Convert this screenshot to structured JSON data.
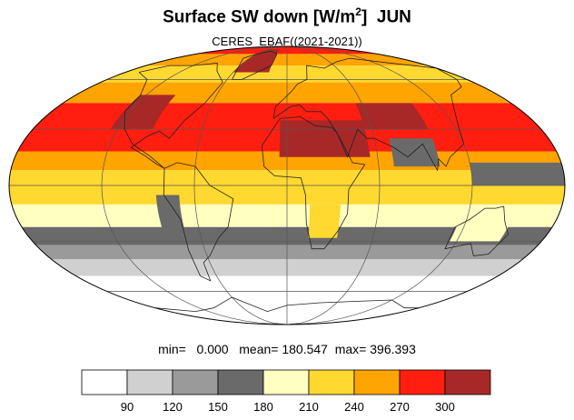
{
  "title": {
    "main": "Surface SW down [W/m",
    "sup": "2",
    "close": "]",
    "month": "JUN"
  },
  "subtitle": "CERES_EBAF((2021-2021))",
  "stats": {
    "min_label": "min=",
    "min": "0.000",
    "mean_label": "mean=",
    "mean": "180.547",
    "max_label": "max=",
    "max": "396.393"
  },
  "colorbar": {
    "levels": [
      90,
      120,
      150,
      180,
      210,
      240,
      270,
      300
    ],
    "colors": [
      "#ffffff",
      "#d0d0d0",
      "#9a9a9a",
      "#6a6a6a",
      "#ffffc0",
      "#ffd830",
      "#ffa400",
      "#ff1e10",
      "#a82828"
    ],
    "tick_labels": [
      "90",
      "120",
      "150",
      "180",
      "210",
      "240",
      "270",
      "300"
    ]
  },
  "map": {
    "projection": "Mollweide",
    "latitude_bands_north_to_south": [
      {
        "lat_from": 90,
        "lat_to": 80,
        "value_bin": 7
      },
      {
        "lat_from": 80,
        "lat_to": 70,
        "value_bin": 6
      },
      {
        "lat_from": 70,
        "lat_to": 58,
        "value_bin": 5
      },
      {
        "lat_from": 58,
        "lat_to": 45,
        "value_bin": 6
      },
      {
        "lat_from": 45,
        "lat_to": 30,
        "value_bin": 7
      },
      {
        "lat_from": 30,
        "lat_to": 18,
        "value_bin": 7
      },
      {
        "lat_from": 18,
        "lat_to": 8,
        "value_bin": 6
      },
      {
        "lat_from": 8,
        "lat_to": 0,
        "value_bin": 5
      },
      {
        "lat_from": 0,
        "lat_to": -10,
        "value_bin": 5
      },
      {
        "lat_from": -10,
        "lat_to": -22,
        "value_bin": 4
      },
      {
        "lat_from": -22,
        "lat_to": -32,
        "value_bin": 3
      },
      {
        "lat_from": -32,
        "lat_to": -40,
        "value_bin": 2
      },
      {
        "lat_from": -40,
        "lat_to": -50,
        "value_bin": 1
      },
      {
        "lat_from": -50,
        "lat_to": -90,
        "value_bin": 0
      }
    ],
    "hotspots": [
      {
        "name": "sahara-arabia",
        "lon_from": -5,
        "lon_to": 55,
        "lat_from": 15,
        "lat_to": 35,
        "value_bin": 8
      },
      {
        "name": "arctic-greenland",
        "lon_from": -60,
        "lon_to": -20,
        "lat_from": 65,
        "lat_to": 85,
        "value_bin": 8
      },
      {
        "name": "north-america-west",
        "lon_from": -125,
        "lon_to": -95,
        "lat_from": 30,
        "lat_to": 50,
        "value_bin": 8
      },
      {
        "name": "central-asia",
        "lon_from": 55,
        "lon_to": 100,
        "lat_from": 30,
        "lat_to": 45,
        "value_bin": 8
      },
      {
        "name": "indian-monsoon",
        "lon_from": 70,
        "lon_to": 100,
        "lat_from": 10,
        "lat_to": 25,
        "value_bin": 3
      },
      {
        "name": "itcz-pacific",
        "lon_from": 120,
        "lon_to": 180,
        "lat_from": 0,
        "lat_to": 12,
        "value_bin": 3
      },
      {
        "name": "south-america-west-coast",
        "lon_from": -85,
        "lon_to": -70,
        "lat_from": -30,
        "lat_to": -5,
        "value_bin": 3
      },
      {
        "name": "southern-africa",
        "lon_from": 15,
        "lon_to": 35,
        "lat_from": -28,
        "lat_to": -10,
        "value_bin": 5
      },
      {
        "name": "australia",
        "lon_from": 115,
        "lon_to": 150,
        "lat_from": -30,
        "lat_to": -15,
        "value_bin": 4
      },
      {
        "name": "antarctica",
        "lon_from": -180,
        "lon_to": 180,
        "lat_from": -90,
        "lat_to": -65,
        "value_bin": 0
      }
    ]
  }
}
